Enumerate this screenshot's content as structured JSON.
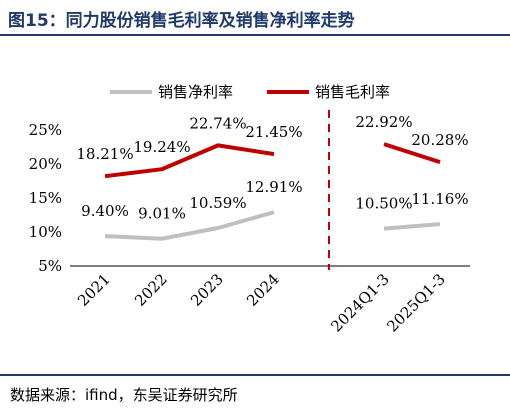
{
  "figure": {
    "title": "图15：同力股份销售毛利率及销售净利率走势",
    "source": "数据来源：ifind，东吴证券研究所"
  },
  "chart_data": {
    "type": "line",
    "categories": [
      "2021",
      "2022",
      "2023",
      "2024",
      "2024Q1-3",
      "2025Q1-3"
    ],
    "series": [
      {
        "name": "销售净利率",
        "color": "#bfbfbf",
        "values": [
          9.4,
          9.01,
          10.59,
          12.91,
          10.5,
          11.16
        ],
        "labels": [
          "9.40%",
          "9.01%",
          "10.59%",
          "12.91%",
          "10.50%",
          "11.16%"
        ]
      },
      {
        "name": "销售毛利率",
        "color": "#c00000",
        "values": [
          18.21,
          19.24,
          22.74,
          21.45,
          22.92,
          20.28
        ],
        "labels": [
          "18.21%",
          "19.24%",
          "22.74%",
          "21.45%",
          "22.92%",
          "20.28%"
        ]
      }
    ],
    "segments": [
      [
        0,
        1,
        2,
        3
      ],
      [
        4,
        5
      ]
    ],
    "yticks": [
      "5%",
      "10%",
      "15%",
      "20%",
      "25%"
    ],
    "ytick_values": [
      5,
      10,
      15,
      20,
      25
    ],
    "ylim": [
      5,
      25
    ],
    "divider_color": "#c00000",
    "legend_position": "top",
    "grid": false
  }
}
